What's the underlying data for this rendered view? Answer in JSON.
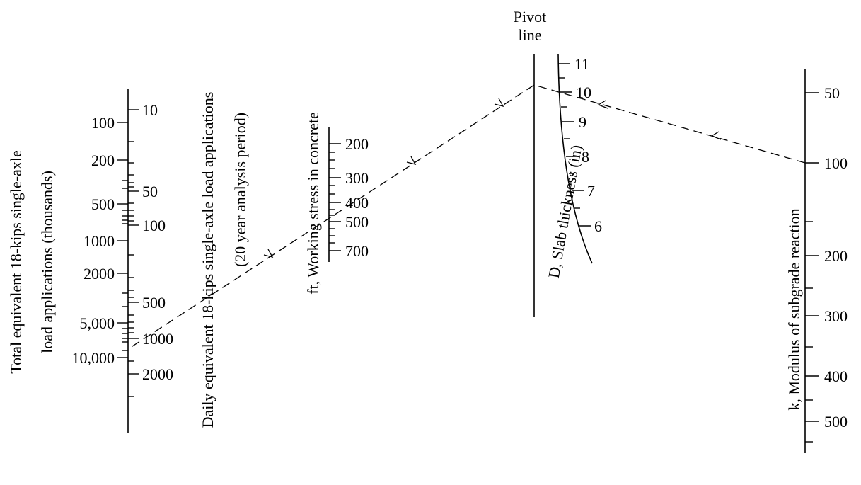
{
  "pivot": {
    "line1": "Pivot",
    "line2": "line"
  },
  "total_axis": {
    "title_line1": "Total equivalent 18-kips single-axle",
    "title_line2": "load applications (thousands)",
    "labels": [
      "100",
      "200",
      "500",
      "1000",
      "2000",
      "5,000",
      "10,000"
    ]
  },
  "daily_axis": {
    "title_line1": "Daily equivalent 18-kips single-axle load applications",
    "title_line2": "(20 year analysis period)",
    "labels": [
      "10",
      "50",
      "100",
      "500",
      "1000",
      "2000"
    ]
  },
  "stress_axis": {
    "title": "ft, Working stress in concrete",
    "labels": [
      "200",
      "300",
      "400",
      "500",
      "700"
    ]
  },
  "slab_axis": {
    "title": "D, Slab thickness (in)",
    "labels": [
      "11",
      "10",
      "9",
      "8",
      "7",
      "6"
    ]
  },
  "k_axis": {
    "title": "k, Modulus of subgrade reaction",
    "labels": [
      "50",
      "100",
      "200",
      "300",
      "400",
      "500"
    ]
  },
  "example_path": {
    "k": "100",
    "pivot_point": "10",
    "stress": "400"
  }
}
